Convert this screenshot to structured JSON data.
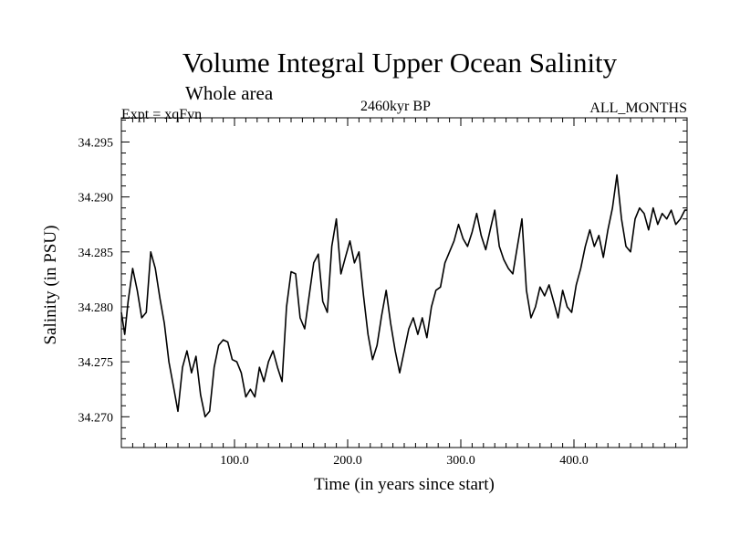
{
  "chart_data": {
    "type": "line",
    "title": "Volume Integral Upper Ocean Salinity",
    "subtitle": "Whole area",
    "experiment": "Expt = xqFvn",
    "period": "2460kyr BP",
    "months": "ALL_MONTHS",
    "xlabel": "Time (in years since start)",
    "ylabel": "Salinity (in PSU)",
    "xlim": [
      0,
      500
    ],
    "ylim": [
      34.2672,
      34.2972
    ],
    "xticks": [
      100,
      200,
      300,
      400
    ],
    "xtick_labels": [
      "100.0",
      "200.0",
      "300.0",
      "400.0"
    ],
    "yticks": [
      34.27,
      34.275,
      34.28,
      34.285,
      34.29,
      34.295
    ],
    "ytick_labels": [
      "34.270",
      "34.275",
      "34.280",
      "34.285",
      "34.290",
      "34.295"
    ],
    "series": [
      {
        "name": "Salinity",
        "color": "#000000",
        "x": [
          0,
          3,
          6,
          10,
          14,
          18,
          22,
          26,
          30,
          34,
          38,
          42,
          46,
          50,
          54,
          58,
          62,
          66,
          70,
          74,
          78,
          82,
          86,
          90,
          94,
          98,
          102,
          106,
          110,
          114,
          118,
          122,
          126,
          130,
          134,
          138,
          142,
          146,
          150,
          154,
          158,
          162,
          166,
          170,
          174,
          178,
          182,
          186,
          190,
          194,
          198,
          202,
          206,
          210,
          214,
          218,
          222,
          226,
          230,
          234,
          238,
          242,
          246,
          250,
          254,
          258,
          262,
          266,
          270,
          274,
          278,
          282,
          286,
          290,
          294,
          298,
          302,
          306,
          310,
          314,
          318,
          322,
          326,
          330,
          334,
          338,
          342,
          346,
          350,
          354,
          358,
          362,
          366,
          370,
          374,
          378,
          382,
          386,
          390,
          394,
          398,
          402,
          406,
          410,
          414,
          418,
          422,
          426,
          430,
          434,
          438,
          442,
          446,
          450,
          454,
          458,
          462,
          466,
          470,
          474,
          478,
          482,
          486,
          490,
          494,
          498,
          500
        ],
        "y": [
          34.2795,
          34.2775,
          34.2805,
          34.2835,
          34.2815,
          34.279,
          34.2795,
          34.285,
          34.2835,
          34.2808,
          34.2785,
          34.275,
          34.2728,
          34.2705,
          34.2745,
          34.276,
          34.274,
          34.2755,
          34.272,
          34.27,
          34.2705,
          34.2745,
          34.2765,
          34.277,
          34.2768,
          34.2752,
          34.275,
          34.274,
          34.2718,
          34.2725,
          34.2718,
          34.2745,
          34.2732,
          34.275,
          34.276,
          34.2745,
          34.2732,
          34.28,
          34.2832,
          34.283,
          34.279,
          34.278,
          34.281,
          34.284,
          34.2848,
          34.2805,
          34.2795,
          34.2855,
          34.288,
          34.283,
          34.2845,
          34.286,
          34.284,
          34.285,
          34.281,
          34.2775,
          34.2752,
          34.2765,
          34.2792,
          34.2815,
          34.2785,
          34.276,
          34.274,
          34.276,
          34.278,
          34.279,
          34.2775,
          34.279,
          34.2772,
          34.28,
          34.2815,
          34.2818,
          34.284,
          34.285,
          34.286,
          34.2875,
          34.2862,
          34.2855,
          34.2868,
          34.2885,
          34.2865,
          34.2852,
          34.287,
          34.2888,
          34.2855,
          34.2843,
          34.2835,
          34.283,
          34.2855,
          34.288,
          34.2815,
          34.279,
          34.28,
          34.2818,
          34.281,
          34.282,
          34.2805,
          34.279,
          34.2815,
          34.28,
          34.2795,
          34.282,
          34.2835,
          34.2855,
          34.287,
          34.2855,
          34.2865,
          34.2845,
          34.287,
          34.289,
          34.292,
          34.288,
          34.2855,
          34.285,
          34.288,
          34.289,
          34.2885,
          34.287,
          34.289,
          34.2875,
          34.2885,
          34.288,
          34.2888,
          34.2875,
          34.288,
          34.2888,
          34.2888
        ]
      }
    ]
  }
}
